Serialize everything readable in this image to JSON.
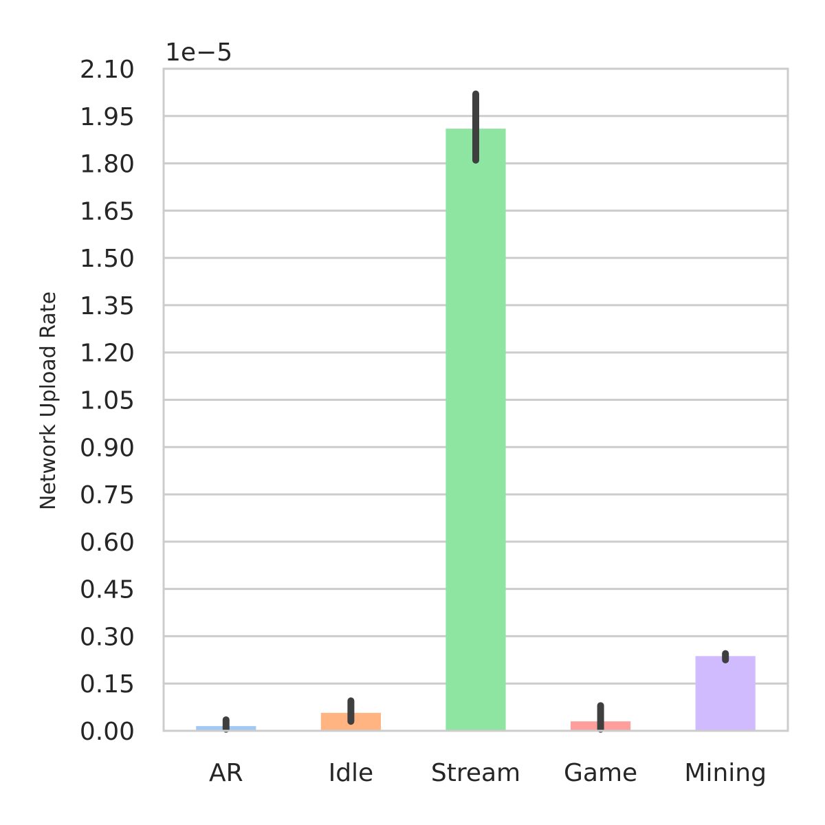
{
  "chart_data": {
    "type": "bar",
    "title": "",
    "xlabel": "",
    "ylabel": "Network Upload Rate",
    "y_offset_label": "1e−5",
    "categories": [
      "AR",
      "Idle",
      "Stream",
      "Game",
      "Mining"
    ],
    "values": [
      0.015,
      0.057,
      1.91,
      0.03,
      0.237
    ],
    "error_low": [
      0.005,
      0.03,
      1.81,
      0.005,
      0.225
    ],
    "error_high": [
      0.035,
      0.095,
      2.02,
      0.08,
      0.245
    ],
    "colors": [
      "#a1c9f4",
      "#ffb482",
      "#8de5a1",
      "#ff9f9b",
      "#d0bbff"
    ],
    "error_color": "#3f3f3f",
    "ylim": [
      0,
      2.1
    ],
    "yticks": [
      "0.00",
      "0.15",
      "0.30",
      "0.45",
      "0.60",
      "0.75",
      "0.90",
      "1.05",
      "1.20",
      "1.35",
      "1.50",
      "1.65",
      "1.80",
      "1.95",
      "2.10"
    ],
    "grid": true
  }
}
